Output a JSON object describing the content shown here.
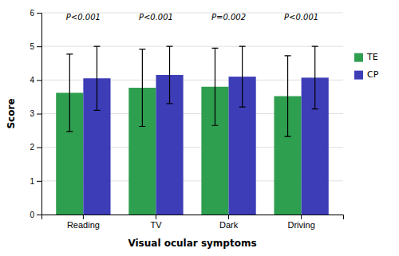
{
  "chart_data": {
    "type": "bar",
    "categories": [
      "Reading",
      "TV",
      "Dark",
      "Driving"
    ],
    "series": [
      {
        "name": "TE",
        "color": "#2e9e4f",
        "values": [
          3.62,
          3.77,
          3.8,
          3.52
        ],
        "errors": [
          1.15,
          1.15,
          1.15,
          1.2
        ]
      },
      {
        "name": "CP",
        "color": "#3d3db8",
        "values": [
          4.05,
          4.15,
          4.1,
          4.07
        ],
        "errors": [
          0.95,
          0.85,
          0.9,
          0.93
        ]
      }
    ],
    "annotations": [
      "P<0.001",
      "P<0.001",
      "P=0.002",
      "P<0.001"
    ],
    "xlabel": "Visual ocular symptoms",
    "ylabel": "Score",
    "ylim": [
      0,
      6
    ],
    "yticks": [
      0,
      1,
      2,
      3,
      4,
      5,
      6
    ],
    "grid": true,
    "legend": "right"
  }
}
